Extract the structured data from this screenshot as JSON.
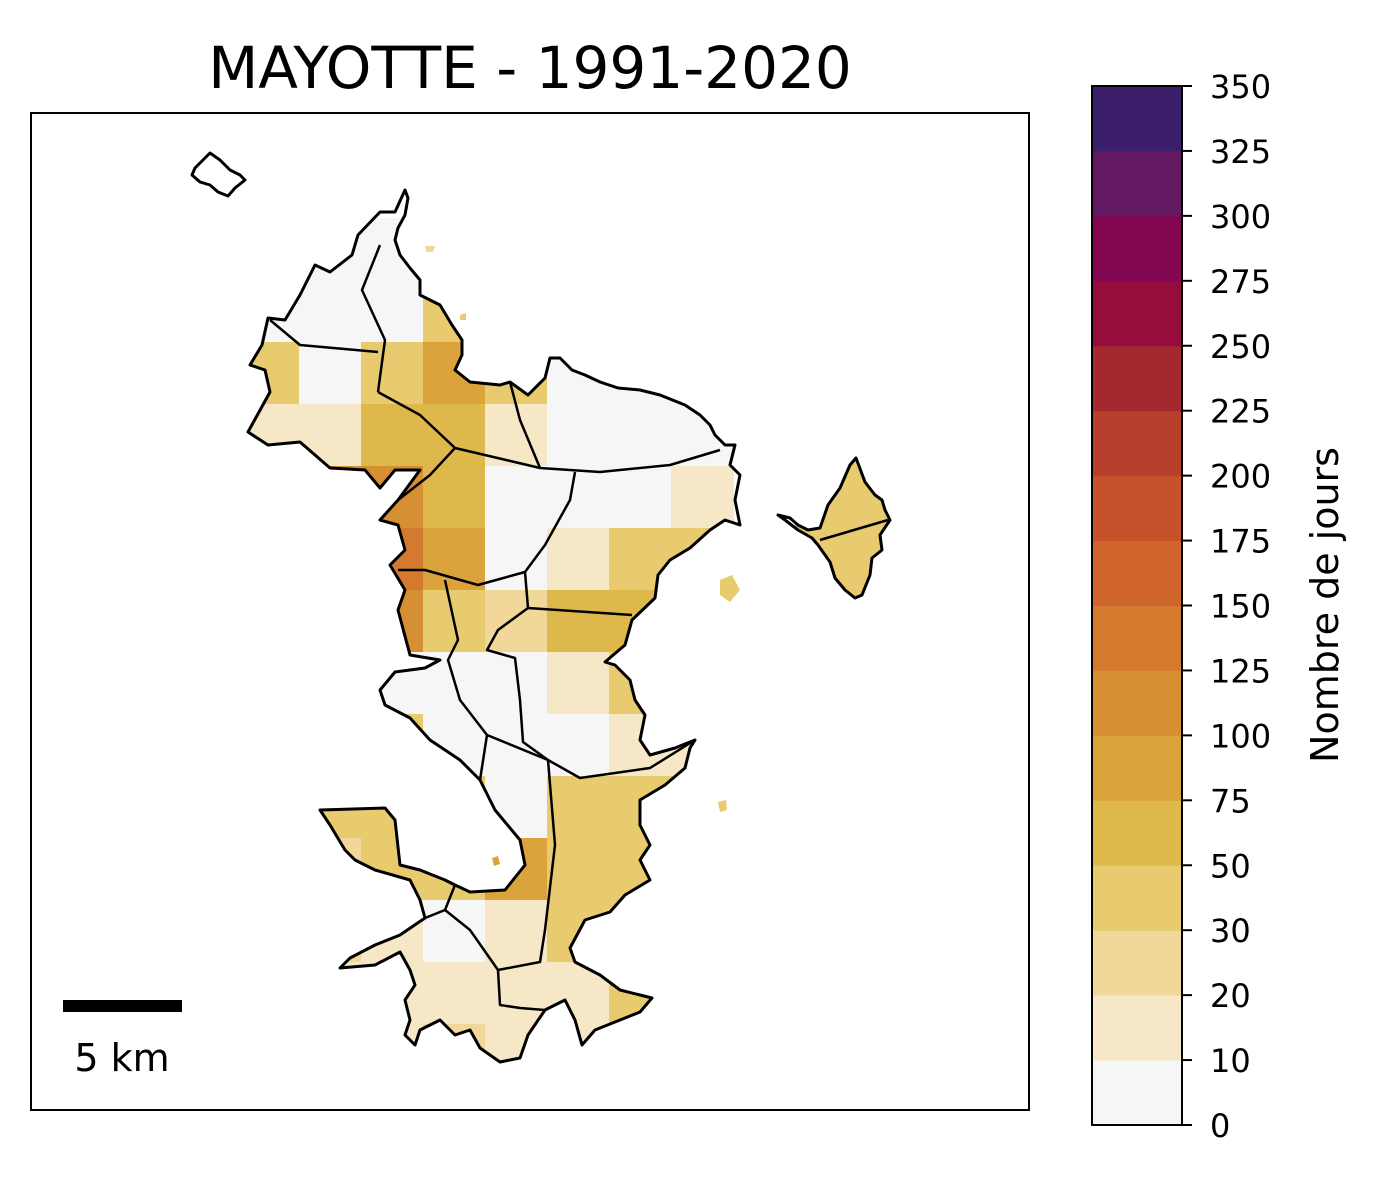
{
  "title": "MAYOTTE - 1991-2020",
  "scale_bar_label": "5 km",
  "colorbar": {
    "label": "Nombre de jours",
    "ticks": [
      "0",
      "10",
      "20",
      "30",
      "50",
      "75",
      "100",
      "125",
      "150",
      "175",
      "200",
      "225",
      "250",
      "275",
      "300",
      "325",
      "350"
    ],
    "colors": [
      "#f6f6f6",
      "#f6e8c7",
      "#f1d89a",
      "#e8cb6f",
      "#dfb84b",
      "#dba33b",
      "#d68f33",
      "#d37a2e",
      "#cf652b",
      "#c5522b",
      "#b6402b",
      "#a3292e",
      "#960c3c",
      "#820750",
      "#631962",
      "#3c1f6b"
    ]
  },
  "map": {
    "value_colors": {
      "0-10": "#f6f6f6",
      "10-20": "#f6e8c7",
      "20-30": "#f1d89a",
      "30-50": "#e8cb6f",
      "50-75": "#dfb84b",
      "75-100": "#dba33b",
      "100-125": "#d68f33",
      "125-150": "#d37a2e"
    }
  }
}
